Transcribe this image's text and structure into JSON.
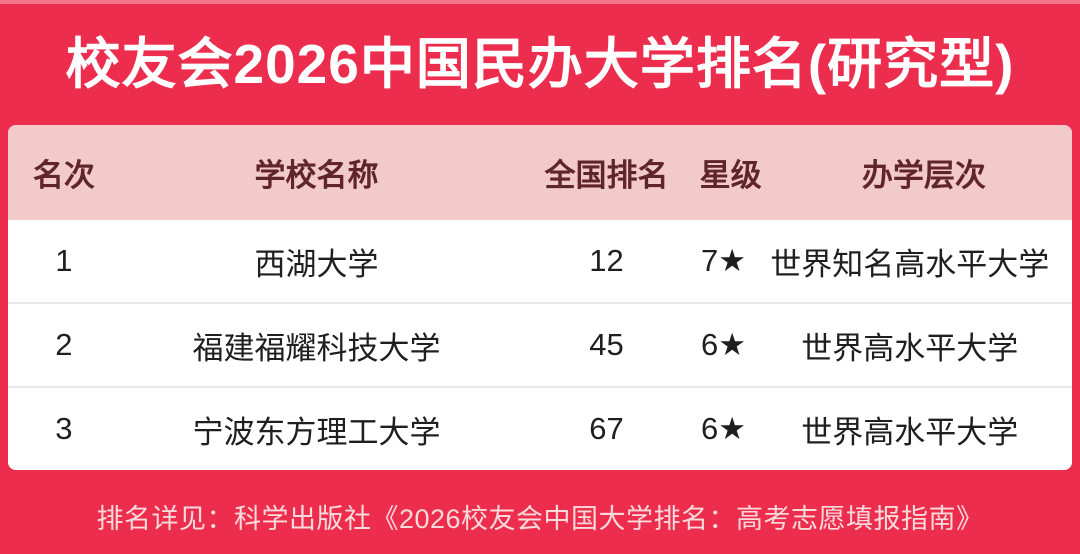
{
  "title": "校友会2026中国民办大学排名(研究型)",
  "table": {
    "columns": [
      "名次",
      "学校名称",
      "全国排名",
      "星级",
      "办学层次"
    ],
    "rows": [
      {
        "rank": "1",
        "school": "西湖大学",
        "national_rank": "12",
        "star": "7★",
        "level": "世界知名高水平大学"
      },
      {
        "rank": "2",
        "school": "福建福耀科技大学",
        "national_rank": "45",
        "star": "6★",
        "level": "世界高水平大学"
      },
      {
        "rank": "3",
        "school": "宁波东方理工大学",
        "national_rank": "67",
        "star": "6★",
        "level": "世界高水平大学"
      }
    ]
  },
  "footer": {
    "note": "排名详见：科学出版社《2026校友会中国大学排名：高考志愿填报指南》"
  },
  "colors": {
    "background_red": "#ed2d4d",
    "header_bg": "#f3caca",
    "header_text": "#602528",
    "row_text": "#1f1f1f",
    "divider": "#e9e9e9",
    "title_text": "#ffffff",
    "footer_text": "#fad9db"
  },
  "chart_data": {
    "type": "table",
    "title": "校友会2026中国民办大学排名(研究型)",
    "columns": [
      "名次",
      "学校名称",
      "全国排名",
      "星级",
      "办学层次"
    ],
    "rows": [
      [
        "1",
        "西湖大学",
        "12",
        "7★",
        "世界知名高水平大学"
      ],
      [
        "2",
        "福建福耀科技大学",
        "45",
        "6★",
        "世界高水平大学"
      ],
      [
        "3",
        "宁波东方理工大学",
        "67",
        "6★",
        "世界高水平大学"
      ]
    ],
    "note": "排名详见：科学出版社《2026校友会中国大学排名：高考志愿填报指南》"
  }
}
